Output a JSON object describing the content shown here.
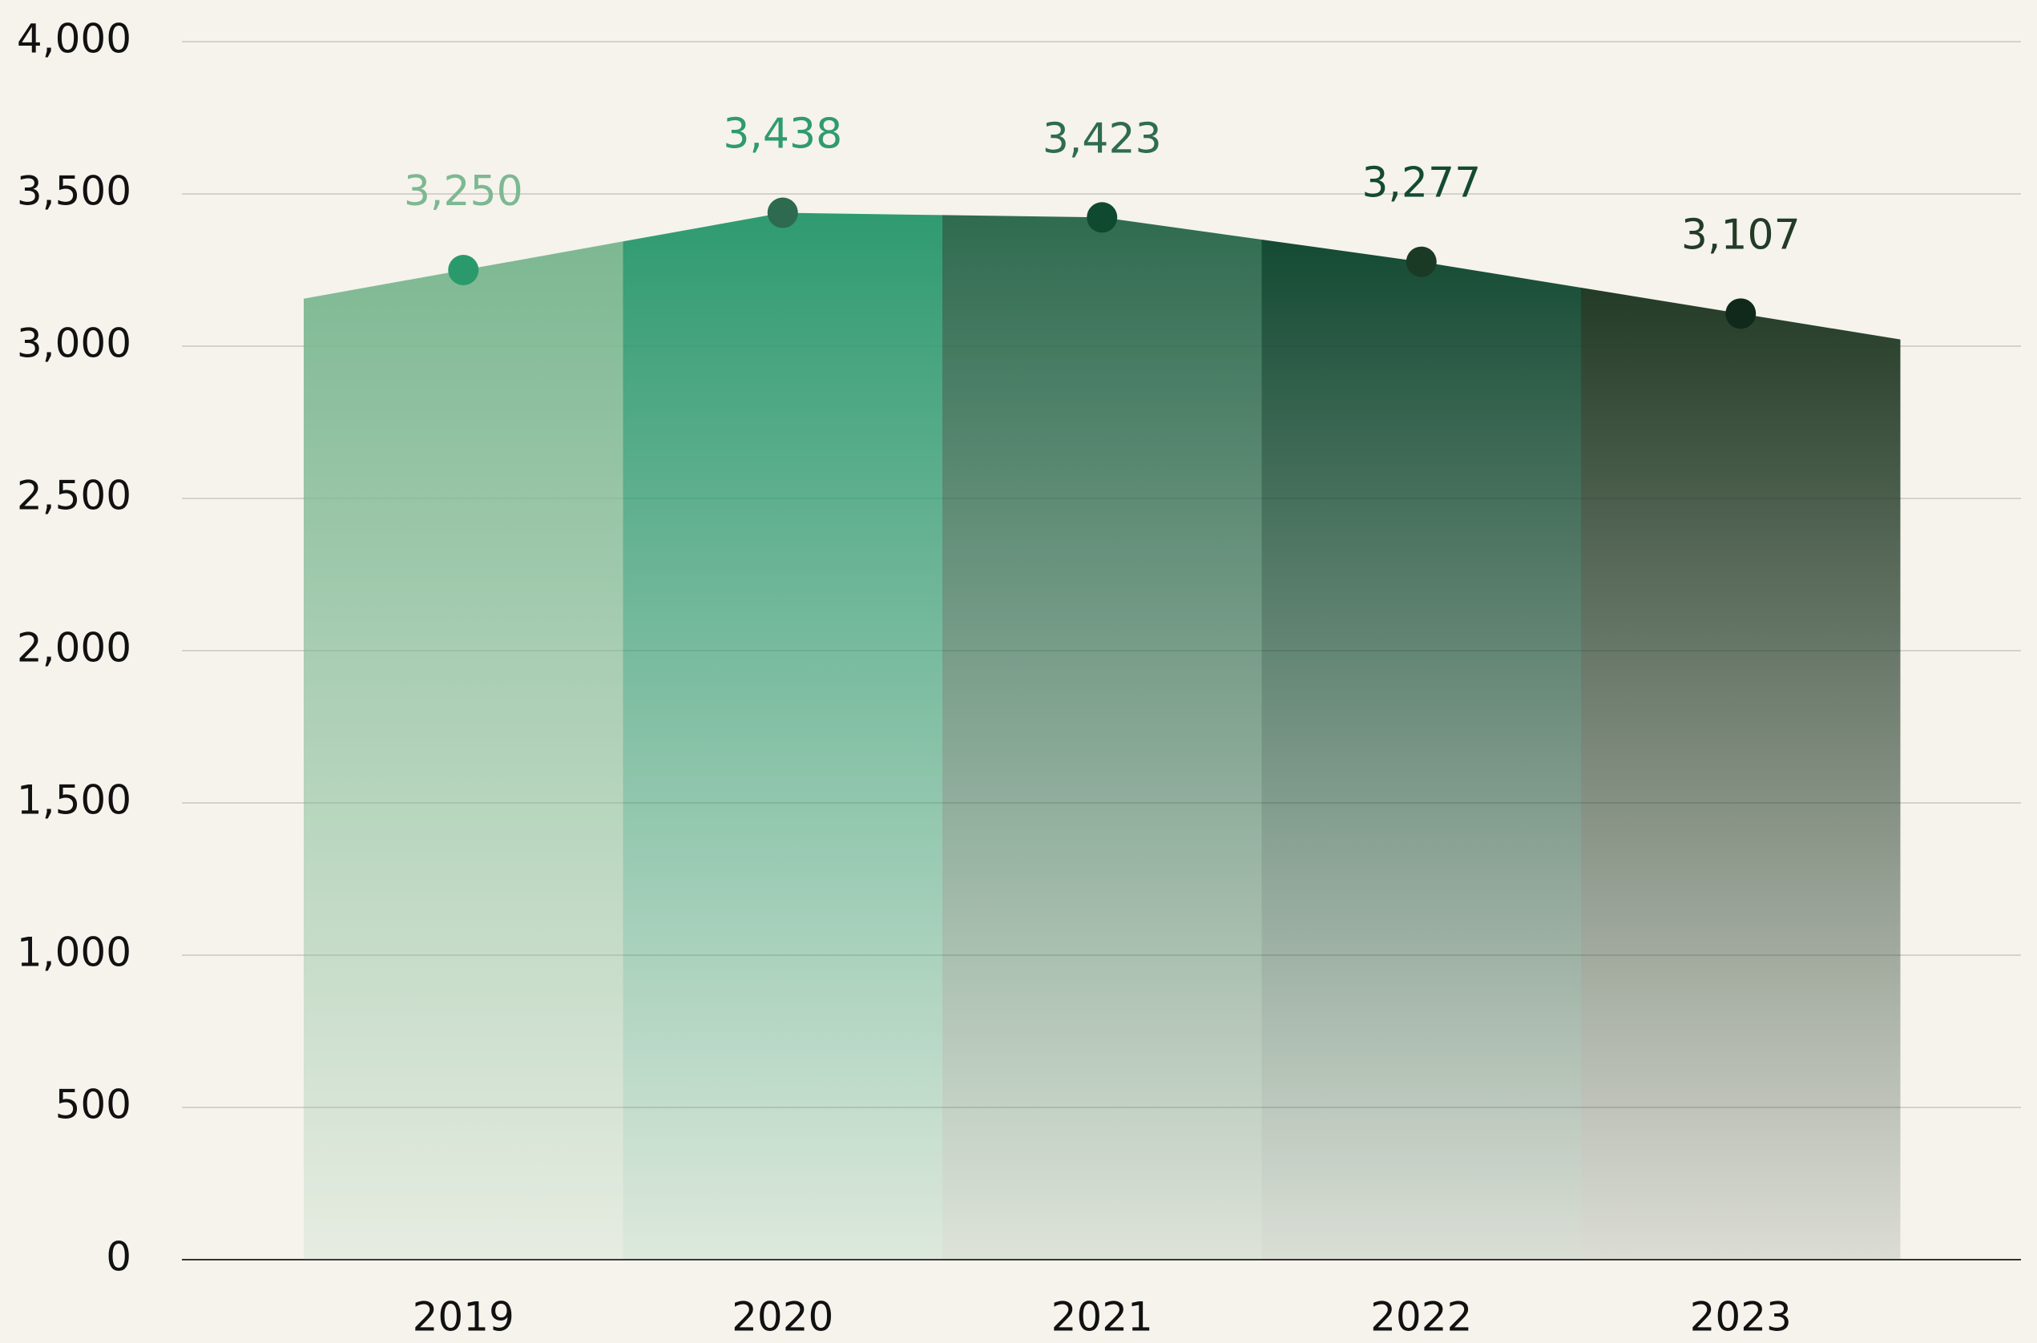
{
  "chart_data": {
    "type": "area-segments",
    "categories": [
      "2019",
      "2020",
      "2021",
      "2022",
      "2023"
    ],
    "values": [
      3250,
      3438,
      3423,
      3277,
      3107
    ],
    "value_labels": [
      "3,250",
      "3,438",
      "3,423",
      "3,277",
      "3,107"
    ],
    "colors": [
      "#7db892",
      "#2f9a70",
      "#2f6b50",
      "#144a33",
      "#233b27"
    ],
    "dot_colors": [
      "#2a9a6c",
      "#2d6a4f",
      "#0f4a30",
      "#1a3a26",
      "#10291a"
    ],
    "ylim": [
      0,
      4000
    ],
    "yticks": [
      0,
      500,
      {
        "value": 1000,
        "label": "1,000"
      },
      {
        "value": 1500,
        "label": "1,500"
      },
      {
        "value": 2000,
        "label": "2,000"
      },
      {
        "value": 2500,
        "label": "2,500"
      },
      {
        "value": 3000,
        "label": "3,000"
      },
      {
        "value": 3500,
        "label": "3,500"
      },
      {
        "value": 4000,
        "label": "4,000"
      }
    ],
    "grid": true
  }
}
